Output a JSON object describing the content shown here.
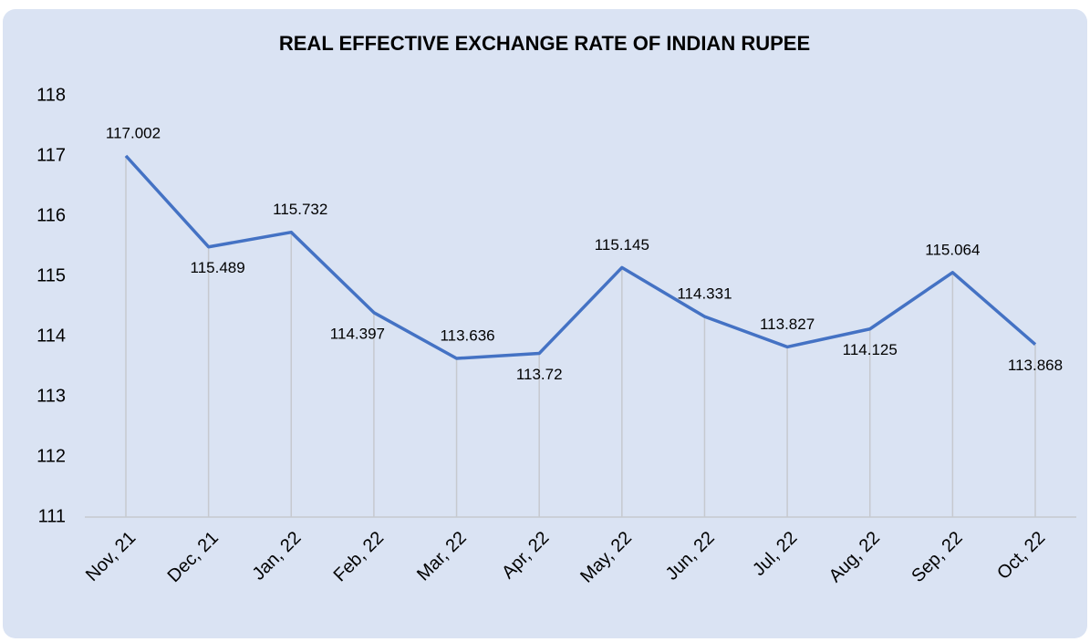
{
  "chart_data": {
    "type": "line",
    "title": "REAL EFFECTIVE EXCHANGE RATE OF INDIAN RUPEE",
    "categories": [
      "Nov, 21",
      "Dec, 21",
      "Jan, 22",
      "Feb, 22",
      "Mar, 22",
      "Apr, 22",
      "May, 22",
      "Jun, 22",
      "Jul, 22",
      "Aug, 22",
      "Sep, 22",
      "Oct, 22"
    ],
    "values": [
      117.002,
      115.489,
      115.732,
      114.397,
      113.636,
      113.72,
      115.145,
      114.331,
      113.827,
      114.125,
      115.064,
      113.868
    ],
    "color": "#4472c4",
    "ylim": [
      111,
      118
    ],
    "yticks": [
      111,
      112,
      113,
      114,
      115,
      116,
      117,
      118
    ],
    "drop_lines": true
  }
}
